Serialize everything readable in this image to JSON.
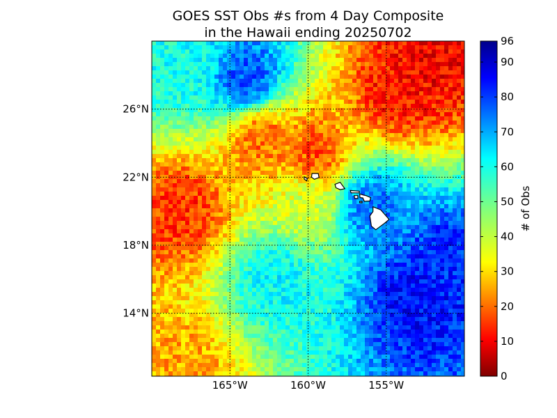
{
  "title": {
    "line1": "GOES SST Obs #s from 4 Day Composite",
    "line2": "in the Hawaii ending 20250702"
  },
  "map": {
    "lon_range": [
      -170,
      -150
    ],
    "lat_range": [
      10.3,
      30.0
    ],
    "lon_ticks": [
      {
        "value": -165,
        "label": "165°W"
      },
      {
        "value": -160,
        "label": "160°W"
      },
      {
        "value": -155,
        "label": "155°W"
      }
    ],
    "lat_ticks": [
      {
        "value": 26,
        "label": "26°N"
      },
      {
        "value": 22,
        "label": "22°N"
      },
      {
        "value": 18,
        "label": "18°N"
      },
      {
        "value": 14,
        "label": "14°N"
      }
    ],
    "gridlines": "dotted",
    "land_color": "#ffffff",
    "coast_color": "#000000"
  },
  "colorbar": {
    "label": "# of Obs",
    "min": 0,
    "max": 96,
    "colormap": "jet",
    "ticks": [
      {
        "value": 0,
        "label": "0"
      },
      {
        "value": 10,
        "label": "10"
      },
      {
        "value": 20,
        "label": "20"
      },
      {
        "value": 30,
        "label": "30"
      },
      {
        "value": 40,
        "label": "40"
      },
      {
        "value": 50,
        "label": "50"
      },
      {
        "value": 60,
        "label": "60"
      },
      {
        "value": 70,
        "label": "70"
      },
      {
        "value": 80,
        "label": "80"
      },
      {
        "value": 90,
        "label": "90"
      },
      {
        "value": 96,
        "label": "96"
      }
    ]
  },
  "field_regions": [
    {
      "name": "northwest-high",
      "lon": -164,
      "lat": 27.8,
      "value": 78
    },
    {
      "name": "northwest-mid",
      "lon": -168,
      "lat": 28.5,
      "value": 60
    },
    {
      "name": "northeast-low",
      "lon": -154,
      "lat": 27.0,
      "value": 12
    },
    {
      "name": "northeast-low-2",
      "lon": -152,
      "lat": 28.8,
      "value": 10
    },
    {
      "name": "central-band-low",
      "lon": -163,
      "lat": 24.2,
      "value": 20
    },
    {
      "name": "central-band-low-2",
      "lon": -159.5,
      "lat": 23.3,
      "value": 18
    },
    {
      "name": "west-low",
      "lon": -168,
      "lat": 20.0,
      "value": 15
    },
    {
      "name": "big-island-east",
      "lon": -156.0,
      "lat": 20.3,
      "value": 75
    },
    {
      "name": "south-central-mid",
      "lon": -162,
      "lat": 16.0,
      "value": 62
    },
    {
      "name": "southeast-high",
      "lon": -153,
      "lat": 15.0,
      "value": 85
    },
    {
      "name": "southeast-high-2",
      "lon": -151,
      "lat": 17.0,
      "value": 82
    },
    {
      "name": "south-low",
      "lon": -168,
      "lat": 11.0,
      "value": 25
    },
    {
      "name": "central-yellow",
      "lon": -160,
      "lat": 20.5,
      "value": 38
    }
  ],
  "islands": [
    {
      "name": "Niihau",
      "points": [
        [
          -160.25,
          22.02
        ],
        [
          -160.05,
          21.92
        ],
        [
          -160.1,
          21.78
        ],
        [
          -160.25,
          21.9
        ]
      ]
    },
    {
      "name": "Kauai",
      "points": [
        [
          -159.75,
          22.22
        ],
        [
          -159.35,
          22.22
        ],
        [
          -159.3,
          21.98
        ],
        [
          -159.6,
          21.88
        ],
        [
          -159.78,
          22.0
        ]
      ]
    },
    {
      "name": "Oahu",
      "points": [
        [
          -158.28,
          21.58
        ],
        [
          -157.95,
          21.7
        ],
        [
          -157.65,
          21.32
        ],
        [
          -157.95,
          21.27
        ],
        [
          -158.22,
          21.38
        ]
      ]
    },
    {
      "name": "Molokai",
      "points": [
        [
          -157.3,
          21.22
        ],
        [
          -156.72,
          21.18
        ],
        [
          -156.72,
          21.08
        ],
        [
          -157.25,
          21.08
        ]
      ]
    },
    {
      "name": "Lanai",
      "points": [
        [
          -157.05,
          20.92
        ],
        [
          -156.82,
          20.92
        ],
        [
          -156.82,
          20.75
        ],
        [
          -157.02,
          20.75
        ]
      ]
    },
    {
      "name": "Maui",
      "points": [
        [
          -156.7,
          21.02
        ],
        [
          -156.45,
          20.95
        ],
        [
          -156.3,
          20.92
        ],
        [
          -156.0,
          20.8
        ],
        [
          -156.05,
          20.6
        ],
        [
          -156.4,
          20.58
        ],
        [
          -156.5,
          20.78
        ],
        [
          -156.68,
          20.8
        ]
      ]
    },
    {
      "name": "Kahoolawe",
      "points": [
        [
          -156.7,
          20.58
        ],
        [
          -156.55,
          20.58
        ],
        [
          -156.55,
          20.5
        ],
        [
          -156.7,
          20.5
        ]
      ]
    },
    {
      "name": "Hawaii",
      "points": [
        [
          -155.85,
          20.26
        ],
        [
          -155.35,
          20.08
        ],
        [
          -154.82,
          19.52
        ],
        [
          -155.1,
          19.3
        ],
        [
          -155.67,
          18.91
        ],
        [
          -155.95,
          19.12
        ],
        [
          -156.05,
          19.72
        ],
        [
          -155.85,
          19.98
        ]
      ]
    }
  ]
}
